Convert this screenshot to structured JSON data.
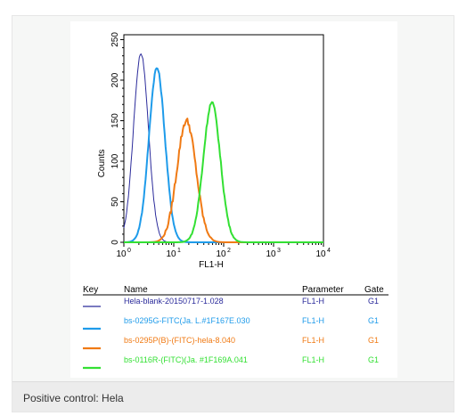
{
  "chart_data": {
    "type": "line",
    "xlabel": "FL1-H",
    "ylabel": "Counts",
    "xscale": "log",
    "xlim": [
      1,
      10000
    ],
    "ylim": [
      0,
      256
    ],
    "x_ticks": [
      {
        "value": 1,
        "base": "10",
        "exp": "0"
      },
      {
        "value": 10,
        "base": "10",
        "exp": "1"
      },
      {
        "value": 100,
        "base": "10",
        "exp": "2"
      },
      {
        "value": 1000,
        "base": "10",
        "exp": "3"
      },
      {
        "value": 10000,
        "base": "10",
        "exp": "4"
      }
    ],
    "y_ticks": [
      {
        "value": 0,
        "label": "0"
      },
      {
        "value": 50,
        "label": "50"
      },
      {
        "value": 100,
        "label": "100"
      },
      {
        "value": 150,
        "label": "150"
      },
      {
        "value": 200,
        "label": "200"
      },
      {
        "value": 250,
        "label": "250"
      }
    ],
    "series": [
      {
        "name": "Hela-blank-20150717-1.028",
        "color": "#2b2b9b",
        "center": 2.2,
        "peak": 233,
        "sigma": 0.15,
        "jitter": 3
      },
      {
        "name": "bs-0295G-FITC(Ja. L.#1F167E.030",
        "color": "#1e9bea",
        "center": 4.6,
        "peak": 215,
        "sigma": 0.16,
        "jitter": 4
      },
      {
        "name": "bs-0295P(B)-(FITC)-hela-8.040",
        "color": "#f07a14",
        "center": 18,
        "peak": 150,
        "sigma": 0.19,
        "jitter": 8
      },
      {
        "name": "bs-0116R-(FITC)(Ja. #1F169A.041",
        "color": "#33e033",
        "center": 58,
        "peak": 172,
        "sigma": 0.17,
        "jitter": 5
      }
    ]
  },
  "legend": {
    "headers": {
      "key": "Key",
      "name": "Name",
      "parameter": "Parameter",
      "gate": "Gate"
    },
    "rows": [
      {
        "name": "Hela-blank-20150717-1.028",
        "parameter": "FL1-H",
        "gate": "G1",
        "color": "#2b2b9b"
      },
      {
        "name": "bs-0295G-FITC(Ja. L.#1F167E.030",
        "parameter": "FL1-H",
        "gate": "G1",
        "color": "#1e9bea"
      },
      {
        "name": "bs-0295P(B)-(FITC)-hela-8.040",
        "parameter": "FL1-H",
        "gate": "G1",
        "color": "#f07a14"
      },
      {
        "name": "bs-0116R-(FITC)(Ja. #1F169A.041",
        "parameter": "FL1-H",
        "gate": "G1",
        "color": "#33e033"
      }
    ]
  },
  "caption": "Positive control: Hela"
}
